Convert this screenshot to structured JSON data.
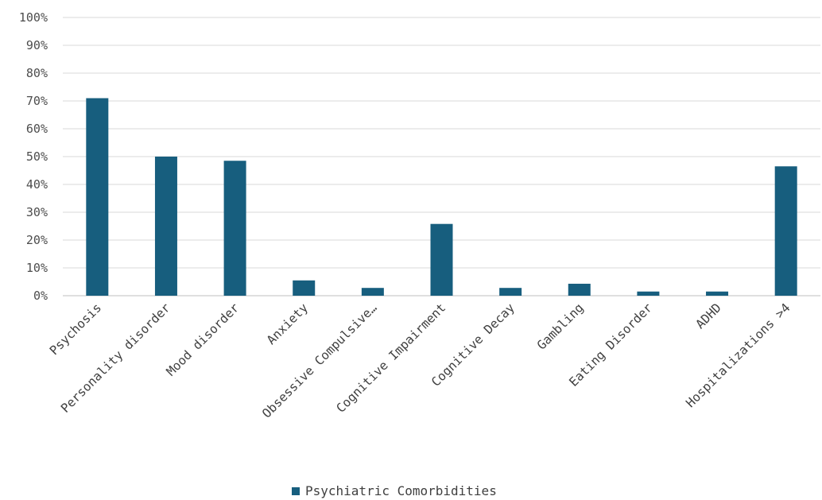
{
  "chart_data": {
    "type": "bar",
    "title": "",
    "xlabel": "",
    "ylabel": "",
    "ylim": [
      0,
      100
    ],
    "y_ticks": [
      "0%",
      "10%",
      "20%",
      "30%",
      "40%",
      "50%",
      "60%",
      "70%",
      "80%",
      "90%",
      "100%"
    ],
    "grid": true,
    "legend_position": "bottom",
    "categories": [
      "Psychosis",
      "Personality disorder",
      "Mood disorder",
      "Anxiety",
      "Obsessive Compulsive…",
      "Cognitive Impairment",
      "Cognitive Decay",
      "Gambling",
      "Eating Disorder",
      "ADHD",
      "Hospitalizations >4"
    ],
    "series": [
      {
        "name": "Psychiatric Comorbidities",
        "color": "#175e7e",
        "values": [
          71,
          50,
          48.5,
          5.5,
          2.8,
          25.8,
          2.8,
          4.3,
          1.5,
          1.5,
          46.5
        ]
      }
    ]
  }
}
